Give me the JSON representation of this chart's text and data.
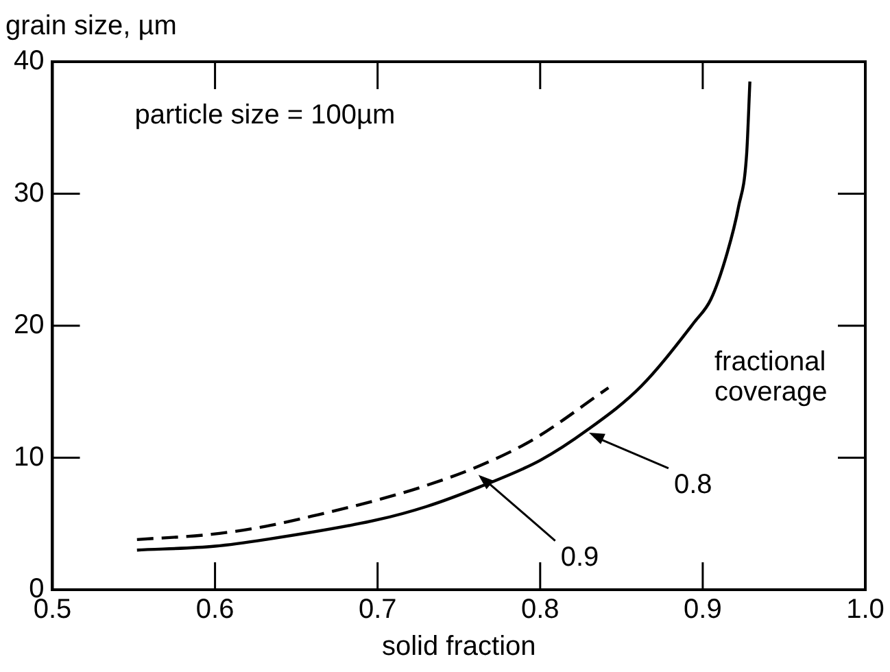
{
  "chart_data": {
    "type": "line",
    "xlabel": "solid fraction",
    "ylabel": "grain size, µm",
    "xlim": [
      0.5,
      1.0
    ],
    "xticks": [
      {
        "value": 0.5,
        "label": "0.5"
      },
      {
        "value": 0.6,
        "label": "0.6"
      },
      {
        "value": 0.7,
        "label": "0.7"
      },
      {
        "value": 0.8,
        "label": "0.8"
      },
      {
        "value": 0.9,
        "label": "0.9"
      },
      {
        "value": 1.0,
        "label": "1.0"
      }
    ],
    "ylim": [
      0,
      40
    ],
    "yticks": [
      0,
      10,
      20,
      30,
      40
    ],
    "grid": false,
    "legend": false,
    "marker": "none",
    "series": [
      {
        "color": "#000000",
        "line_style": "solid",
        "x": [
          0.552,
          0.6,
          0.631,
          0.7,
          0.73,
          0.763,
          0.8,
          0.829,
          0.862,
          0.895,
          0.905,
          0.915,
          0.922,
          0.927,
          0.929
        ],
        "values": [
          3.0,
          3.3,
          3.8,
          5.3,
          6.3,
          7.8,
          9.8,
          12.1,
          15.4,
          20.3,
          22.0,
          25.5,
          29.0,
          33.0,
          38.5
        ]
      },
      {
        "color": "#000000",
        "line_style": "dashed",
        "x": [
          0.552,
          0.598,
          0.631,
          0.664,
          0.7,
          0.73,
          0.763,
          0.796,
          0.842
        ],
        "values": [
          3.8,
          4.2,
          4.8,
          5.7,
          6.8,
          7.9,
          9.4,
          11.4,
          15.3
        ]
      }
    ],
    "annotations": [
      "particle size = 100µm",
      "fractional coverage",
      {
        "text": "0.8",
        "x": 0.83,
        "y": 11.9
      },
      {
        "text": "0.9",
        "x": 0.762,
        "y": 8.7
      }
    ]
  }
}
